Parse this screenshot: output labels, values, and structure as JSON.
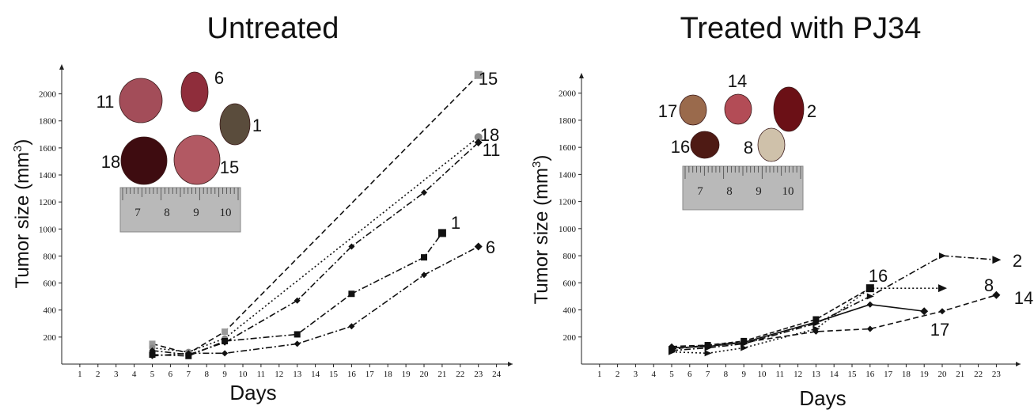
{
  "chart_data": [
    {
      "type": "line",
      "title": "Untreated",
      "xlabel": "Days",
      "ylabel": "Tumor size (mm3)",
      "x_ticks": [
        1,
        2,
        3,
        4,
        5,
        6,
        7,
        8,
        9,
        10,
        11,
        12,
        13,
        14,
        15,
        16,
        17,
        18,
        19,
        20,
        21,
        22,
        23,
        24
      ],
      "y_ticks": [
        200,
        400,
        600,
        800,
        1000,
        1200,
        1400,
        1600,
        1800,
        2000
      ],
      "xlim": [
        0,
        24.5
      ],
      "ylim": [
        0,
        2150
      ],
      "photo_labels": [
        "11",
        "6",
        "1",
        "18",
        "15"
      ],
      "ruler_labels": [
        "7",
        "8",
        "9",
        "10"
      ],
      "series": [
        {
          "name": "15",
          "dash": "7 4",
          "marker": "square",
          "color": "#999999",
          "x": [
            5,
            7,
            9,
            23
          ],
          "y": [
            150,
            80,
            240,
            2140
          ]
        },
        {
          "name": "18",
          "dash": "2 3",
          "marker": "circle",
          "color": "#888888",
          "x": [
            5,
            7,
            9,
            23
          ],
          "y": [
            120,
            90,
            190,
            1680
          ]
        },
        {
          "name": "11",
          "dash": "8 3 2 3",
          "marker": "diamond",
          "color": "#111111",
          "x": [
            5,
            7,
            9,
            13,
            16,
            20,
            23
          ],
          "y": [
            100,
            70,
            160,
            470,
            870,
            1270,
            1640
          ]
        },
        {
          "name": "1",
          "dash": "8 3 2 3",
          "marker": "square",
          "color": "#111111",
          "x": [
            5,
            7,
            9,
            13,
            16,
            20,
            21
          ],
          "y": [
            70,
            60,
            170,
            220,
            520,
            790,
            970
          ]
        },
        {
          "name": "6",
          "dash": "8 3 2 3",
          "marker": "diamond",
          "color": "#111111",
          "x": [
            5,
            7,
            9,
            13,
            16,
            20,
            23
          ],
          "y": [
            60,
            80,
            80,
            150,
            280,
            660,
            870
          ]
        }
      ]
    },
    {
      "type": "line",
      "title": "Treated with PJ34",
      "xlabel": "Days",
      "ylabel": "Tumor size (mm3)",
      "x_ticks": [
        1,
        2,
        3,
        4,
        5,
        6,
        7,
        8,
        9,
        10,
        11,
        12,
        13,
        14,
        15,
        16,
        17,
        18,
        19,
        20,
        21,
        22,
        23
      ],
      "y_ticks": [
        200,
        400,
        600,
        800,
        1000,
        1200,
        1400,
        1600,
        1800,
        2000
      ],
      "xlim": [
        0,
        23.5
      ],
      "ylim": [
        0,
        2080
      ],
      "photo_labels": [
        "17",
        "14",
        "2",
        "16",
        "8"
      ],
      "ruler_labels": [
        "7",
        "8",
        "9",
        "10"
      ],
      "series": [
        {
          "name": "2",
          "dash": "8 3 2 3",
          "marker": "triangle",
          "color": "#111111",
          "x": [
            5,
            7,
            9,
            13,
            16,
            20,
            23
          ],
          "y": [
            100,
            120,
            150,
            300,
            500,
            800,
            770
          ]
        },
        {
          "name": "8",
          "dash": "2 3",
          "marker": "triangle",
          "color": "#111111",
          "x": [
            5,
            7,
            9,
            13,
            16,
            20
          ],
          "y": [
            90,
            80,
            120,
            260,
            560,
            560
          ]
        },
        {
          "name": "16",
          "dash": "6 3",
          "marker": "square",
          "color": "#111111",
          "x": [
            5,
            7,
            9,
            13,
            16
          ],
          "y": [
            110,
            140,
            170,
            330,
            560
          ]
        },
        {
          "name": "17",
          "dash": "",
          "marker": "diamond",
          "color": "#111111",
          "x": [
            5,
            7,
            9,
            13,
            16,
            19
          ],
          "y": [
            120,
            130,
            160,
            310,
            440,
            390
          ]
        },
        {
          "name": "14",
          "dash": "7 4",
          "marker": "diamond",
          "color": "#111111",
          "x": [
            5,
            7,
            9,
            13,
            16,
            20,
            23
          ],
          "y": [
            130,
            140,
            160,
            240,
            260,
            390,
            510
          ]
        }
      ]
    }
  ]
}
